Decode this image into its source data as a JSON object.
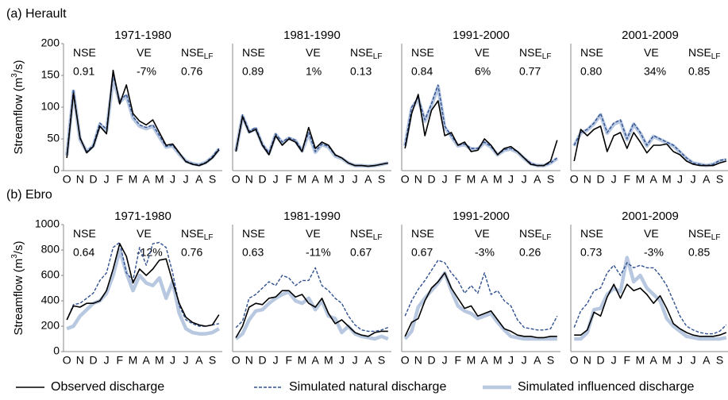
{
  "chart_data": [
    {
      "type": "line",
      "panel_label": "(a) Herault",
      "title": "1971-1980",
      "y_label": {
        "text": "Streamflow (m",
        "sup": "3",
        "end": "/s)"
      },
      "stats": [
        {
          "name": "NSE",
          "value": "0.91"
        },
        {
          "name": "VE",
          "value": "-7%"
        },
        {
          "name": "NSE",
          "sub": "LF",
          "value": "0.76"
        }
      ],
      "categories": [
        "O",
        null,
        "N",
        null,
        "D",
        null,
        "J",
        null,
        "F",
        null,
        "M",
        null,
        "A",
        null,
        "M",
        null,
        "J",
        null,
        "J",
        null,
        "A",
        null,
        "S",
        null
      ],
      "ylim": [
        0,
        200
      ],
      "yticks": [
        0,
        50,
        100,
        150,
        200
      ],
      "series": [
        {
          "name": "Observed discharge",
          "color": "#000000",
          "style": "solid",
          "values": [
            20,
            122,
            52,
            28,
            38,
            70,
            58,
            158,
            105,
            135,
            90,
            78,
            72,
            80,
            60,
            40,
            42,
            28,
            14,
            10,
            8,
            12,
            20,
            33
          ]
        },
        {
          "name": "Simulated natural discharge",
          "color": "#2f4f8f",
          "style": "dashed",
          "values": [
            25,
            128,
            50,
            30,
            40,
            75,
            65,
            150,
            110,
            120,
            85,
            72,
            68,
            72,
            55,
            38,
            40,
            27,
            15,
            11,
            9,
            13,
            22,
            35
          ]
        },
        {
          "name": "Simulated influenced discharge",
          "color": "#b8c8e0",
          "style": "thick",
          "values": [
            24,
            125,
            49,
            30,
            39,
            73,
            63,
            145,
            108,
            118,
            83,
            70,
            66,
            70,
            53,
            37,
            39,
            26,
            15,
            11,
            9,
            13,
            21,
            34
          ]
        }
      ]
    },
    {
      "type": "line",
      "title": "1981-1990",
      "stats": [
        {
          "name": "NSE",
          "value": "0.89"
        },
        {
          "name": "VE",
          "value": "1%"
        },
        {
          "name": "NSE",
          "sub": "LF",
          "value": "0.13"
        }
      ],
      "categories": [
        "O",
        null,
        "N",
        null,
        "D",
        null,
        "J",
        null,
        "F",
        null,
        "M",
        null,
        "A",
        null,
        "M",
        null,
        "J",
        null,
        "J",
        null,
        "A",
        null,
        "S",
        null
      ],
      "ylim": [
        0,
        200
      ],
      "series": [
        {
          "name": "Observed discharge",
          "color": "#000000",
          "style": "solid",
          "values": [
            30,
            85,
            60,
            65,
            40,
            25,
            55,
            40,
            50,
            45,
            30,
            68,
            35,
            45,
            40,
            25,
            20,
            12,
            8,
            8,
            7,
            8,
            10,
            12
          ]
        },
        {
          "name": "Simulated natural discharge",
          "color": "#2f4f8f",
          "style": "dashed",
          "values": [
            32,
            88,
            62,
            68,
            42,
            28,
            58,
            45,
            52,
            48,
            32,
            60,
            30,
            42,
            38,
            24,
            20,
            12,
            8,
            8,
            7,
            8,
            10,
            12
          ]
        },
        {
          "name": "Simulated influenced discharge",
          "color": "#b8c8e0",
          "style": "thick",
          "values": [
            31,
            86,
            61,
            66,
            41,
            27,
            57,
            44,
            51,
            47,
            31,
            58,
            29,
            41,
            37,
            23,
            19,
            12,
            8,
            8,
            7,
            8,
            10,
            12
          ]
        }
      ]
    },
    {
      "type": "line",
      "title": "1991-2000",
      "stats": [
        {
          "name": "NSE",
          "value": "0.84"
        },
        {
          "name": "VE",
          "value": "6%"
        },
        {
          "name": "NSE",
          "sub": "LF",
          "value": "0.77"
        }
      ],
      "categories": [
        "O",
        null,
        "N",
        null,
        "D",
        null,
        "J",
        null,
        "F",
        null,
        "M",
        null,
        "A",
        null,
        "M",
        null,
        "J",
        null,
        "J",
        null,
        "A",
        null,
        "S",
        null
      ],
      "ylim": [
        0,
        200
      ],
      "series": [
        {
          "name": "Observed discharge",
          "color": "#000000",
          "style": "solid",
          "values": [
            35,
            90,
            120,
            55,
            95,
            110,
            55,
            60,
            40,
            45,
            30,
            32,
            50,
            40,
            25,
            35,
            38,
            30,
            20,
            10,
            8,
            8,
            15,
            48
          ]
        },
        {
          "name": "Simulated natural discharge",
          "color": "#2f4f8f",
          "style": "dashed",
          "values": [
            40,
            100,
            115,
            80,
            105,
            135,
            70,
            55,
            40,
            42,
            35,
            35,
            45,
            38,
            25,
            33,
            35,
            30,
            20,
            12,
            8,
            8,
            12,
            20
          ]
        },
        {
          "name": "Simulated influenced discharge",
          "color": "#b8c8e0",
          "style": "thick",
          "values": [
            39,
            98,
            113,
            78,
            103,
            132,
            68,
            54,
            39,
            41,
            34,
            34,
            44,
            37,
            25,
            32,
            34,
            29,
            19,
            11,
            8,
            8,
            12,
            19
          ]
        }
      ]
    },
    {
      "type": "line",
      "title": "2001-2009",
      "stats": [
        {
          "name": "NSE",
          "value": "0.80"
        },
        {
          "name": "VE",
          "value": "34%"
        },
        {
          "name": "NSE",
          "sub": "LF",
          "value": "0.85"
        }
      ],
      "categories": [
        "O",
        null,
        "N",
        null,
        "D",
        null,
        "J",
        null,
        "F",
        null,
        "M",
        null,
        "A",
        null,
        "M",
        null,
        "J",
        null,
        "J",
        null,
        "A",
        null,
        "S",
        null
      ],
      "ylim": [
        0,
        200
      ],
      "series": [
        {
          "name": "Observed discharge",
          "color": "#000000",
          "style": "solid",
          "values": [
            15,
            65,
            55,
            65,
            70,
            30,
            55,
            60,
            35,
            60,
            45,
            28,
            40,
            40,
            42,
            30,
            25,
            15,
            10,
            8,
            8,
            8,
            12,
            15
          ]
        },
        {
          "name": "Simulated natural discharge",
          "color": "#2f4f8f",
          "style": "dashed",
          "values": [
            40,
            60,
            65,
            75,
            90,
            60,
            75,
            80,
            50,
            75,
            60,
            40,
            55,
            50,
            45,
            40,
            30,
            20,
            12,
            10,
            8,
            10,
            16,
            18
          ]
        },
        {
          "name": "Simulated influenced discharge",
          "color": "#b8c8e0",
          "style": "thick",
          "values": [
            39,
            59,
            64,
            74,
            88,
            59,
            73,
            78,
            49,
            73,
            59,
            39,
            54,
            49,
            44,
            39,
            29,
            19,
            12,
            10,
            8,
            10,
            15,
            17
          ]
        }
      ]
    },
    {
      "type": "line",
      "panel_label": "(b) Ebro",
      "title": "1971-1980",
      "y_label": {
        "text": "Streamflow (m",
        "sup": "3",
        "end": "/s)"
      },
      "stats": [
        {
          "name": "NSE",
          "value": "0.64"
        },
        {
          "name": "VE",
          "value": "-12%"
        },
        {
          "name": "NSE",
          "sub": "LF",
          "value": "0.76"
        }
      ],
      "categories": [
        "O",
        null,
        "N",
        null,
        "D",
        null,
        "J",
        null,
        "F",
        null,
        "M",
        null,
        "A",
        null,
        "M",
        null,
        "J",
        null,
        "J",
        null,
        "A",
        null,
        "S",
        null
      ],
      "ylim": [
        0,
        1000
      ],
      "yticks": [
        0,
        200,
        400,
        600,
        800,
        1000
      ],
      "series": [
        {
          "name": "Observed discharge",
          "color": "#000000",
          "style": "solid",
          "values": [
            250,
            360,
            350,
            380,
            380,
            400,
            480,
            650,
            850,
            750,
            540,
            650,
            600,
            650,
            720,
            730,
            550,
            380,
            270,
            230,
            210,
            200,
            210,
            290
          ]
        },
        {
          "name": "Simulated natural discharge",
          "color": "#2f4f8f",
          "style": "dashed",
          "values": [
            250,
            370,
            380,
            420,
            460,
            560,
            620,
            820,
            860,
            620,
            560,
            820,
            680,
            850,
            860,
            820,
            620,
            360,
            250,
            220,
            200,
            200,
            210,
            220
          ]
        },
        {
          "name": "Simulated influenced discharge",
          "color": "#b8c8e0",
          "style": "thick",
          "values": [
            180,
            200,
            280,
            330,
            380,
            400,
            460,
            600,
            800,
            620,
            480,
            600,
            540,
            520,
            580,
            420,
            550,
            300,
            180,
            150,
            140,
            140,
            150,
            180
          ]
        }
      ]
    },
    {
      "type": "line",
      "title": "1981-1990",
      "stats": [
        {
          "name": "NSE",
          "value": "0.63"
        },
        {
          "name": "VE",
          "value": "-11%"
        },
        {
          "name": "NSE",
          "sub": "LF",
          "value": "0.67"
        }
      ],
      "categories": [
        "O",
        null,
        "N",
        null,
        "D",
        null,
        "J",
        null,
        "F",
        null,
        "M",
        null,
        "A",
        null,
        "M",
        null,
        "J",
        null,
        "J",
        null,
        "A",
        null,
        "S",
        null
      ],
      "ylim": [
        0,
        1000
      ],
      "series": [
        {
          "name": "Observed discharge",
          "color": "#000000",
          "style": "solid",
          "values": [
            110,
            200,
            350,
            380,
            370,
            420,
            430,
            480,
            480,
            430,
            450,
            380,
            350,
            420,
            300,
            220,
            250,
            200,
            150,
            130,
            120,
            150,
            160,
            160
          ]
        },
        {
          "name": "Simulated natural discharge",
          "color": "#2f4f8f",
          "style": "dashed",
          "values": [
            190,
            240,
            420,
            450,
            500,
            550,
            520,
            600,
            580,
            520,
            560,
            560,
            660,
            520,
            480,
            420,
            380,
            280,
            210,
            170,
            160,
            160,
            170,
            190
          ]
        },
        {
          "name": "Simulated influenced discharge",
          "color": "#b8c8e0",
          "style": "thick",
          "values": [
            100,
            140,
            250,
            320,
            330,
            380,
            420,
            450,
            470,
            400,
            380,
            420,
            330,
            400,
            280,
            260,
            150,
            200,
            140,
            120,
            110,
            100,
            120,
            100
          ]
        }
      ]
    },
    {
      "type": "line",
      "title": "1991-2000",
      "stats": [
        {
          "name": "NSE",
          "value": "0.67"
        },
        {
          "name": "VE",
          "value": "-3%"
        },
        {
          "name": "NSE",
          "sub": "LF",
          "value": "0.26"
        }
      ],
      "categories": [
        "O",
        null,
        "N",
        null,
        "D",
        null,
        "J",
        null,
        "F",
        null,
        "M",
        null,
        "A",
        null,
        "M",
        null,
        "J",
        null,
        "J",
        null,
        "A",
        null,
        "S",
        null
      ],
      "ylim": [
        0,
        1000
      ],
      "series": [
        {
          "name": "Observed discharge",
          "color": "#000000",
          "style": "solid",
          "values": [
            120,
            230,
            260,
            400,
            500,
            550,
            620,
            500,
            420,
            340,
            360,
            280,
            300,
            320,
            250,
            180,
            160,
            130,
            120,
            120,
            110,
            110,
            120,
            120
          ]
        },
        {
          "name": "Simulated natural discharge",
          "color": "#2f4f8f",
          "style": "dashed",
          "values": [
            280,
            400,
            490,
            560,
            640,
            720,
            700,
            620,
            560,
            460,
            520,
            460,
            620,
            450,
            480,
            400,
            360,
            250,
            190,
            180,
            170,
            170,
            180,
            280
          ]
        },
        {
          "name": "Simulated influenced discharge",
          "color": "#b8c8e0",
          "style": "thick",
          "values": [
            100,
            160,
            350,
            420,
            480,
            540,
            620,
            480,
            360,
            320,
            300,
            260,
            280,
            300,
            230,
            170,
            120,
            110,
            100,
            100,
            100,
            100,
            100,
            100
          ]
        }
      ]
    },
    {
      "type": "line",
      "title": "2001-2009",
      "stats": [
        {
          "name": "NSE",
          "value": "0.73"
        },
        {
          "name": "VE",
          "value": "-3%"
        },
        {
          "name": "NSE",
          "sub": "LF",
          "value": "0.85"
        }
      ],
      "categories": [
        "O",
        null,
        "N",
        null,
        "D",
        null,
        "J",
        null,
        "F",
        null,
        "M",
        null,
        "A",
        null,
        "M",
        null,
        "J",
        null,
        "J",
        null,
        "A",
        null,
        "S",
        null
      ],
      "ylim": [
        0,
        1000
      ],
      "series": [
        {
          "name": "Observed discharge",
          "color": "#000000",
          "style": "solid",
          "values": [
            130,
            130,
            170,
            310,
            280,
            430,
            530,
            420,
            530,
            480,
            500,
            450,
            380,
            440,
            340,
            220,
            180,
            150,
            130,
            120,
            120,
            120,
            130,
            150
          ]
        },
        {
          "name": "Simulated natural discharge",
          "color": "#2f4f8f",
          "style": "dashed",
          "values": [
            190,
            320,
            380,
            480,
            500,
            620,
            680,
            600,
            700,
            660,
            680,
            660,
            660,
            600,
            520,
            400,
            280,
            200,
            170,
            150,
            140,
            140,
            160,
            210
          ]
        },
        {
          "name": "Simulated influenced discharge",
          "color": "#b8c8e0",
          "style": "thick",
          "values": [
            100,
            100,
            150,
            330,
            340,
            450,
            500,
            470,
            740,
            550,
            600,
            500,
            450,
            400,
            260,
            200,
            160,
            120,
            110,
            100,
            100,
            100,
            100,
            110
          ]
        }
      ]
    }
  ]
}
